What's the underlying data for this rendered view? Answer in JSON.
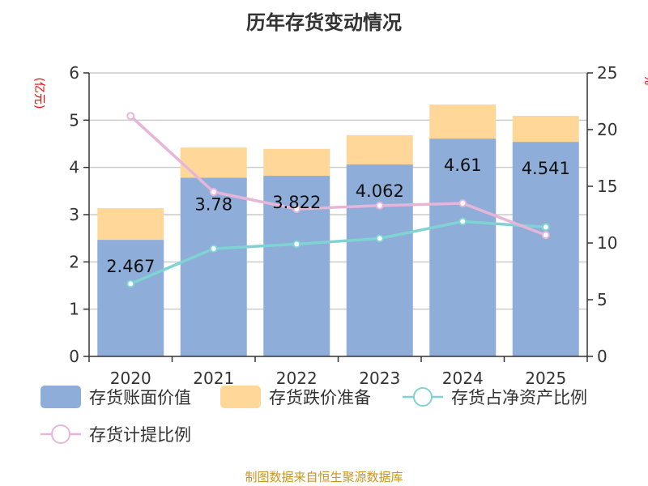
{
  "chart_data": {
    "type": "bar",
    "title": "历年存货变动情况",
    "ylabel_left": "(亿元)",
    "ylabel_right": "%",
    "categories": [
      "2020",
      "2021",
      "2022",
      "2023",
      "2024",
      "2025"
    ],
    "ylim_left": [
      0,
      6
    ],
    "ylim_right": [
      0,
      25
    ],
    "yticks_left": [
      0,
      1,
      2,
      3,
      4,
      5,
      6
    ],
    "yticks_right": [
      0,
      5,
      10,
      15,
      20,
      25
    ],
    "grid": true,
    "legend_position": "bottom",
    "series": [
      {
        "name": "存货账面价值",
        "type": "bar",
        "stack": "a",
        "axis": "left",
        "color": "#8eadd9",
        "values": [
          2.467,
          3.78,
          3.822,
          4.062,
          4.61,
          4.541
        ],
        "labels": [
          "2.467",
          "3.78",
          "3.822",
          "4.062",
          "4.61",
          "4.541"
        ]
      },
      {
        "name": "存货跌价准备",
        "type": "bar",
        "stack": "a",
        "axis": "left",
        "color": "#ffd899",
        "values": [
          0.67,
          0.64,
          0.57,
          0.62,
          0.72,
          0.55
        ]
      },
      {
        "name": "存货占净资产比例",
        "type": "line",
        "axis": "right",
        "color": "#7fd3d3",
        "values": [
          6.4,
          9.5,
          9.9,
          10.4,
          11.9,
          11.4
        ]
      },
      {
        "name": "存货计提比例",
        "type": "line",
        "axis": "right",
        "color": "#e6b6d8",
        "values": [
          21.2,
          14.5,
          13.0,
          13.3,
          13.5,
          10.7
        ]
      }
    ]
  },
  "source": "制图数据来自恒生聚源数据库"
}
